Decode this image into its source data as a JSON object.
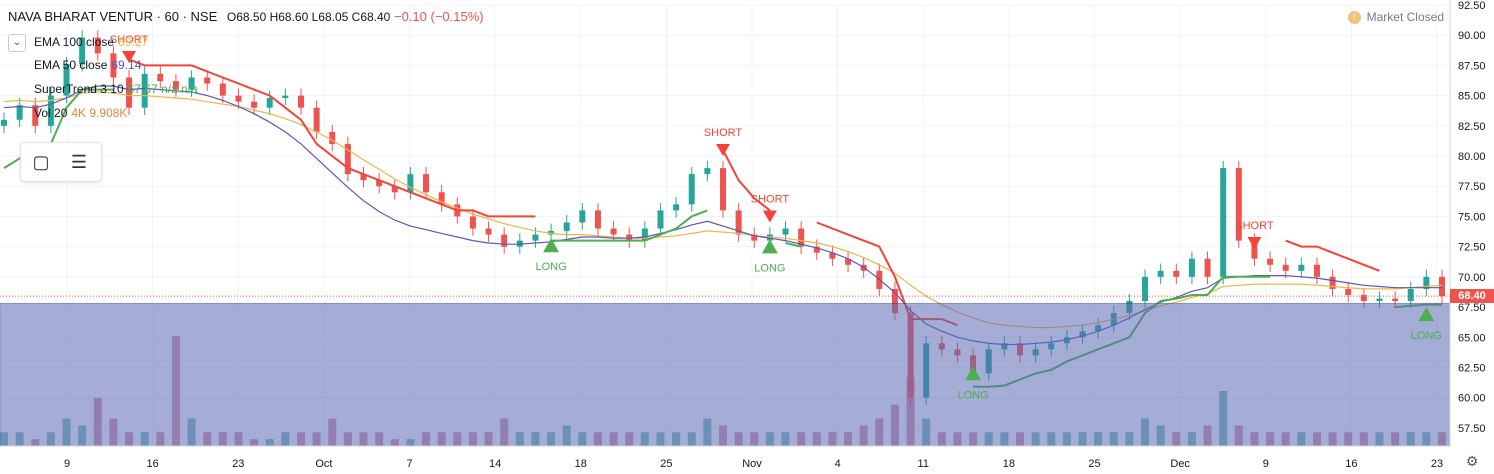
{
  "header": {
    "symbol": "NAVA BHARAT VENTUR · 60 · NSE",
    "ohlc": "O68.50 H68.60 L68.05 C68.40",
    "change": "−0.10 (−0.15%)",
    "collapse_icon": "chevron-down-icon",
    "market_status": "Market Closed"
  },
  "indicators": [
    {
      "label": "EMA 100 close",
      "value": "69.27",
      "color": "#f0b44a"
    },
    {
      "label": "EMA 50 close",
      "value": "69.14",
      "color": "#5b57b8"
    },
    {
      "label": "SuperTrend 3 10",
      "value": "67.67 n/a n/a",
      "color": "#4caf50"
    },
    {
      "label": "Vol 20",
      "value": "4K  9.908K",
      "color": "#e8833a"
    }
  ],
  "toolbar": {
    "rect_icon": "rectangle-select-icon",
    "list_icon": "object-tree-icon"
  },
  "price_axis": {
    "ticks": [
      "92.50",
      "90.00",
      "87.50",
      "85.00",
      "82.50",
      "80.00",
      "77.50",
      "75.00",
      "72.50",
      "70.00",
      "67.50",
      "65.00",
      "62.50",
      "60.00",
      "57.50"
    ],
    "last_price": "68.40"
  },
  "time_axis": {
    "ticks": [
      "9",
      "16",
      "23",
      "Oct",
      "7",
      "14",
      "18",
      "25",
      "Nov",
      "4",
      "11",
      "18",
      "25",
      "Dec",
      "9",
      "16",
      "23"
    ]
  },
  "colors": {
    "up": "#26a69a",
    "down": "#ef5350",
    "supertrend_up": "#4caf50",
    "supertrend_down": "#f44336",
    "ema100": "#f0b44a",
    "ema50": "#5b57b8",
    "overlay": "#5c6bb5",
    "signal_short": "#f44336",
    "signal_long": "#4caf50"
  },
  "chart_data": {
    "type": "candlestick",
    "ylim": [
      56.0,
      92.5
    ],
    "signals": [
      {
        "type": "SHORT",
        "x": "Sep 16",
        "price": 88.2
      },
      {
        "type": "SHORT",
        "x": "Nov 1",
        "price": 80.5
      },
      {
        "type": "SHORT",
        "x": "Nov 4",
        "price": 75.0
      },
      {
        "type": "SHORT",
        "x": "Dec 6",
        "price": 72.8
      },
      {
        "type": "LONG",
        "x": "Oct 18",
        "price": 72.7
      },
      {
        "type": "LONG",
        "x": "Nov 4",
        "price": 72.6
      },
      {
        "type": "LONG",
        "x": "Nov 20",
        "price": 62.1
      },
      {
        "type": "LONG",
        "x": "Dec 23",
        "price": 67.0
      }
    ],
    "series": [
      {
        "name": "price",
        "values": [
          83.0,
          84.2,
          82.5,
          85.0,
          87.6,
          89.8,
          88.5,
          86.5,
          84.0,
          86.8,
          86.2,
          85.5,
          86.5,
          86.0,
          85.0,
          84.5,
          84.0,
          84.8,
          85.0,
          84.0,
          82.0,
          81.0,
          78.5,
          78.0,
          77.5,
          77.0,
          78.5,
          77.0,
          76.0,
          75.0,
          74.0,
          73.5,
          72.5,
          73.0,
          73.5,
          73.8,
          74.5,
          75.5,
          74.0,
          73.5,
          73.0,
          74.0,
          75.5,
          76.0,
          78.5,
          79.0,
          75.5,
          73.5,
          73.0,
          73.5,
          74.0,
          72.5,
          72.0,
          71.5,
          71.0,
          70.5,
          69.0,
          67.0,
          60.0,
          64.5,
          64.0,
          63.5,
          62.0,
          64.0,
          64.5,
          63.5,
          64.0,
          64.5,
          65.0,
          65.5,
          66.0,
          67.0,
          68.0,
          70.0,
          70.5,
          70.0,
          71.5,
          70.0,
          79.0,
          73.0,
          71.5,
          71.0,
          70.5,
          71.0,
          70.0,
          69.0,
          68.5,
          68.0,
          68.2,
          68.0,
          69.0,
          70.0,
          68.4
        ]
      },
      {
        "name": "EMA 100 close",
        "values": [
          84.5,
          84.6,
          84.5,
          84.6,
          84.8,
          85.2,
          85.3,
          85.2,
          85.0,
          85.0,
          84.9,
          84.8,
          84.7,
          84.5,
          84.3,
          84.1,
          83.8,
          83.5,
          83.1,
          82.6,
          82.0,
          81.3,
          80.5,
          79.7,
          78.9,
          78.1,
          77.4,
          76.8,
          76.2,
          75.7,
          75.2,
          74.8,
          74.4,
          74.1,
          73.8,
          73.6,
          73.5,
          73.5,
          73.4,
          73.3,
          73.2,
          73.2,
          73.3,
          73.4,
          73.6,
          73.8,
          73.7,
          73.6,
          73.4,
          73.3,
          73.2,
          73.0,
          72.8,
          72.5,
          72.1,
          71.6,
          71.0,
          70.3,
          69.3,
          68.4,
          67.7,
          67.1,
          66.6,
          66.2,
          66.0,
          65.9,
          65.8,
          65.8,
          65.9,
          66.0,
          66.2,
          66.5,
          66.8,
          67.2,
          67.6,
          67.9,
          68.3,
          68.6,
          69.2,
          69.3,
          69.4,
          69.4,
          69.4,
          69.4,
          69.3,
          69.2,
          69.1,
          69.0,
          69.0,
          69.0,
          69.1,
          69.2,
          69.3
        ]
      },
      {
        "name": "EMA 50 close",
        "values": [
          84.0,
          84.1,
          84.0,
          84.3,
          84.8,
          85.5,
          85.8,
          85.8,
          85.5,
          85.6,
          85.5,
          85.4,
          85.3,
          85.0,
          84.6,
          84.1,
          83.5,
          82.8,
          82.0,
          81.0,
          79.8,
          78.6,
          77.4,
          76.3,
          75.4,
          74.7,
          74.2,
          73.9,
          73.6,
          73.3,
          73.0,
          72.8,
          72.7,
          72.7,
          72.8,
          72.9,
          73.1,
          73.3,
          73.3,
          73.2,
          73.2,
          73.3,
          73.6,
          73.9,
          74.3,
          74.6,
          74.2,
          73.8,
          73.4,
          73.2,
          73.0,
          72.7,
          72.4,
          72.0,
          71.5,
          70.8,
          69.8,
          68.7,
          67.2,
          66.1,
          65.5,
          65.0,
          64.7,
          64.5,
          64.4,
          64.4,
          64.5,
          64.6,
          64.8,
          65.1,
          65.5,
          66.0,
          66.6,
          67.3,
          67.9,
          68.3,
          68.8,
          69.1,
          69.9,
          70.0,
          70.1,
          70.1,
          70.1,
          70.0,
          69.9,
          69.7,
          69.5,
          69.3,
          69.2,
          69.1,
          69.1,
          69.1,
          69.1
        ]
      },
      {
        "name": "SuperTrend 3 10",
        "values": [
          79.0,
          79.8,
          80.0,
          81.0,
          84.0,
          85.5,
          85.5,
          85.5,
          null,
          null,
          null,
          null,
          null,
          null,
          null,
          null,
          null,
          null,
          null,
          null,
          null,
          null,
          null,
          null,
          null,
          null,
          null,
          null,
          null,
          null,
          null,
          null,
          null,
          null,
          null,
          73.0,
          73.0,
          73.0,
          73.0,
          73.0,
          73.0,
          73.0,
          73.5,
          74.0,
          75.0,
          75.5,
          null,
          null,
          null,
          null,
          72.8,
          72.5,
          null,
          null,
          null,
          null,
          null,
          null,
          null,
          null,
          null,
          null,
          60.9,
          60.9,
          61.0,
          61.5,
          62.0,
          62.3,
          63.0,
          63.5,
          64.0,
          64.5,
          65.0,
          67.0,
          68.0,
          68.2,
          68.5,
          68.5,
          70.0,
          70.0,
          70.0,
          70.0,
          null,
          null,
          null,
          null,
          null,
          null,
          null,
          67.5,
          67.6,
          67.7,
          67.7
        ]
      },
      {
        "name": "SuperTrend down",
        "values": [
          null,
          null,
          null,
          null,
          null,
          null,
          null,
          null,
          88.0,
          87.5,
          87.5,
          87.5,
          87.5,
          87.0,
          86.5,
          86.0,
          85.5,
          85.0,
          84.0,
          83.0,
          81.0,
          80.0,
          79.0,
          78.5,
          78.0,
          77.5,
          77.0,
          76.5,
          76.0,
          75.5,
          75.5,
          75.0,
          75.0,
          75.0,
          75.0,
          null,
          null,
          null,
          null,
          null,
          null,
          null,
          null,
          null,
          null,
          null,
          80.5,
          78.0,
          76.5,
          75.5,
          null,
          null,
          74.5,
          74.0,
          73.5,
          73.0,
          72.5,
          70.0,
          66.5,
          66.5,
          66.5,
          66.0,
          null,
          null,
          null,
          null,
          null,
          null,
          null,
          null,
          null,
          null,
          null,
          null,
          null,
          null,
          null,
          null,
          null,
          null,
          null,
          null,
          73.0,
          72.5,
          72.5,
          72.0,
          71.5,
          71.0,
          70.5,
          null,
          null,
          null,
          null
        ]
      },
      {
        "name": "Vol 20",
        "values": [
          1,
          1,
          0.5,
          1,
          2,
          1.5,
          3.5,
          2,
          1,
          1,
          1,
          8,
          2,
          1,
          1,
          1,
          0.5,
          0.5,
          1,
          1,
          1,
          2,
          1,
          1,
          1,
          0.5,
          0.5,
          1,
          1,
          1,
          1,
          1,
          2,
          1,
          1,
          1,
          1.5,
          1,
          1,
          1,
          1,
          1,
          1,
          1,
          1,
          2,
          1.5,
          1,
          1,
          1,
          1,
          1,
          1,
          1,
          1,
          1.5,
          2,
          3,
          5,
          2,
          1,
          1,
          1,
          1,
          1,
          1,
          1,
          1,
          1,
          1,
          1,
          1,
          1,
          2,
          1.5,
          1,
          1,
          1.5,
          4,
          1.5,
          1,
          1,
          1,
          1,
          1,
          1,
          1,
          1,
          1,
          1,
          1,
          1,
          1
        ]
      }
    ]
  }
}
